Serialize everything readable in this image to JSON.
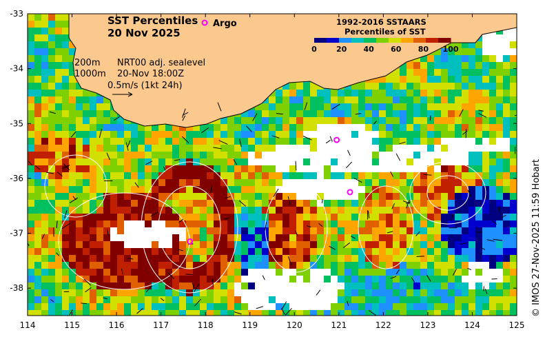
{
  "title": {
    "line1": "SST Percentiles",
    "line2": "20 Nov 2025"
  },
  "argo_label": "Argo",
  "legend": {
    "title1": "1992-2016 SSTAARS",
    "title2": "Percentiles of SST",
    "colors": [
      "#000080",
      "#0000cd",
      "#1e90ff",
      "#00bfbf",
      "#00c060",
      "#7fd000",
      "#d2e000",
      "#ffa500",
      "#e06000",
      "#c02000",
      "#800000"
    ],
    "ticks": [
      "0",
      "20",
      "40",
      "60",
      "80",
      "100"
    ]
  },
  "annotation": {
    "depth1": "200m",
    "depth2": "1000m",
    "source": "NRT00 adj. sealevel",
    "time": "20-Nov 18:00Z",
    "scale": "0.5m/s (1kt 24h)"
  },
  "credit": "© IMOS 27-Nov-2025 11:59 Hobart",
  "axes": {
    "x_ticks": [
      "114",
      "115",
      "116",
      "117",
      "118",
      "119",
      "120",
      "121",
      "122",
      "123",
      "124",
      "125"
    ],
    "y_ticks": [
      "-33",
      "-34",
      "-35",
      "-36",
      "-37",
      "-38"
    ],
    "x_range": [
      114,
      125
    ],
    "y_range": [
      -38.5,
      -33
    ]
  },
  "argo_floats": [
    {
      "lon": 117.65,
      "lat": -37.15
    },
    {
      "lon": 120.95,
      "lat": -35.3
    },
    {
      "lon": 121.25,
      "lat": -36.25
    },
    {
      "lon": 118.0,
      "lat": -33.18
    }
  ],
  "colors": {
    "land": "#fbc98e",
    "coast": "#000000",
    "contour": "#ffffff",
    "argo": "#ff00ff"
  }
}
